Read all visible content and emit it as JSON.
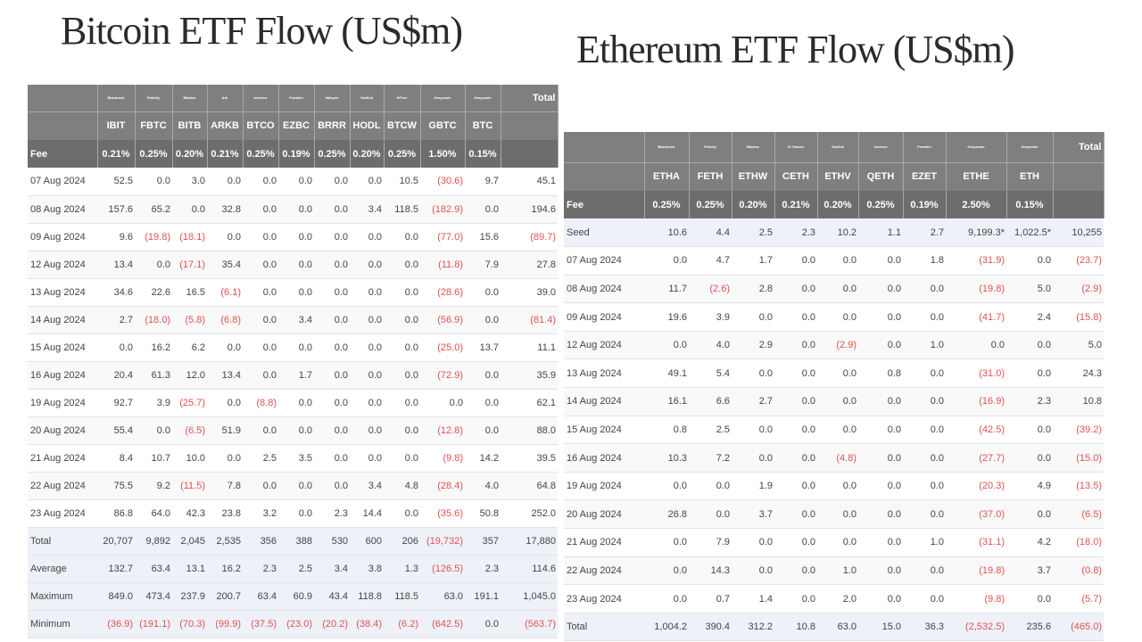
{
  "btc": {
    "title": "Bitcoin ETF Flow (US$m)",
    "issuers": [
      "Blackrock",
      "Fidelity",
      "Bitwise",
      "Ark",
      "Invesco",
      "Franklin",
      "Valkyrie",
      "VanEck",
      "WTree",
      "Grayscale",
      "Grayscale"
    ],
    "total_label": "Total",
    "tickers": [
      "IBIT",
      "FBTC",
      "BITB",
      "ARKB",
      "BTCO",
      "EZBC",
      "BRRR",
      "HODL",
      "BTCW",
      "GBTC",
      "BTC"
    ],
    "fee_label": "Fee",
    "fees": [
      "0.21%",
      "0.25%",
      "0.20%",
      "0.21%",
      "0.25%",
      "0.19%",
      "0.25%",
      "0.20%",
      "0.25%",
      "1.50%",
      "0.15%"
    ],
    "rows": [
      {
        "label": "07 Aug 2024",
        "values": [
          "52.5",
          "0.0",
          "3.0",
          "0.0",
          "0.0",
          "0.0",
          "0.0",
          "0.0",
          "10.5",
          "(30.6)",
          "9.7",
          "45.1"
        ]
      },
      {
        "label": "08 Aug 2024",
        "values": [
          "157.6",
          "65.2",
          "0.0",
          "32.8",
          "0.0",
          "0.0",
          "0.0",
          "3.4",
          "118.5",
          "(182.9)",
          "0.0",
          "194.6"
        ]
      },
      {
        "label": "09 Aug 2024",
        "values": [
          "9.6",
          "(19.8)",
          "(18.1)",
          "0.0",
          "0.0",
          "0.0",
          "0.0",
          "0.0",
          "0.0",
          "(77.0)",
          "15.6",
          "(89.7)"
        ]
      },
      {
        "label": "12 Aug 2024",
        "values": [
          "13.4",
          "0.0",
          "(17.1)",
          "35.4",
          "0.0",
          "0.0",
          "0.0",
          "0.0",
          "0.0",
          "(11.8)",
          "7.9",
          "27.8"
        ]
      },
      {
        "label": "13 Aug 2024",
        "values": [
          "34.6",
          "22.6",
          "16.5",
          "(6.1)",
          "0.0",
          "0.0",
          "0.0",
          "0.0",
          "0.0",
          "(28.6)",
          "0.0",
          "39.0"
        ]
      },
      {
        "label": "14 Aug 2024",
        "values": [
          "2.7",
          "(18.0)",
          "(5.8)",
          "(6.8)",
          "0.0",
          "3.4",
          "0.0",
          "0.0",
          "0.0",
          "(56.9)",
          "0.0",
          "(81.4)"
        ]
      },
      {
        "label": "15 Aug 2024",
        "values": [
          "0.0",
          "16.2",
          "6.2",
          "0.0",
          "0.0",
          "0.0",
          "0.0",
          "0.0",
          "0.0",
          "(25.0)",
          "13.7",
          "11.1"
        ]
      },
      {
        "label": "16 Aug 2024",
        "values": [
          "20.4",
          "61.3",
          "12.0",
          "13.4",
          "0.0",
          "1.7",
          "0.0",
          "0.0",
          "0.0",
          "(72.9)",
          "0.0",
          "35.9"
        ]
      },
      {
        "label": "19 Aug 2024",
        "values": [
          "92.7",
          "3.9",
          "(25.7)",
          "0.0",
          "(8.8)",
          "0.0",
          "0.0",
          "0.0",
          "0.0",
          "0.0",
          "0.0",
          "62.1"
        ]
      },
      {
        "label": "20 Aug 2024",
        "values": [
          "55.4",
          "0.0",
          "(6.5)",
          "51.9",
          "0.0",
          "0.0",
          "0.0",
          "0.0",
          "0.0",
          "(12.8)",
          "0.0",
          "88.0"
        ]
      },
      {
        "label": "21 Aug 2024",
        "values": [
          "8.4",
          "10.7",
          "10.0",
          "0.0",
          "2.5",
          "3.5",
          "0.0",
          "0.0",
          "0.0",
          "(9.8)",
          "14.2",
          "39.5"
        ]
      },
      {
        "label": "22 Aug 2024",
        "values": [
          "75.5",
          "9.2",
          "(11.5)",
          "7.8",
          "0.0",
          "0.0",
          "0.0",
          "3.4",
          "4.8",
          "(28.4)",
          "4.0",
          "64.8"
        ]
      },
      {
        "label": "23 Aug 2024",
        "values": [
          "86.8",
          "64.0",
          "42.3",
          "23.8",
          "3.2",
          "0.0",
          "2.3",
          "14.4",
          "0.0",
          "(35.6)",
          "50.8",
          "252.0"
        ]
      }
    ],
    "summary": [
      {
        "label": "Total",
        "values": [
          "20,707",
          "9,892",
          "2,045",
          "2,535",
          "356",
          "388",
          "530",
          "600",
          "206",
          "(19,732)",
          "357",
          "17,880"
        ]
      },
      {
        "label": "Average",
        "values": [
          "132.7",
          "63.4",
          "13.1",
          "16.2",
          "2.3",
          "2.5",
          "3.4",
          "3.8",
          "1.3",
          "(126.5)",
          "2.3",
          "114.6"
        ]
      },
      {
        "label": "Maximum",
        "values": [
          "849.0",
          "473.4",
          "237.9",
          "200.7",
          "63.4",
          "60.9",
          "43.4",
          "118.8",
          "118.5",
          "63.0",
          "191.1",
          "1,045.0"
        ]
      },
      {
        "label": "Minimum",
        "values": [
          "(36.9)",
          "(191.1)",
          "(70.3)",
          "(99.9)",
          "(37.5)",
          "(23.0)",
          "(20.2)",
          "(38.4)",
          "(6.2)",
          "(642.5)",
          "0.0",
          "(563.7)"
        ]
      }
    ]
  },
  "eth": {
    "title": "Ethereum ETF Flow (US$m)",
    "issuers": [
      "Blackrock",
      "Fidelity",
      "Bitwise",
      "21 Shares",
      "VanEck",
      "Invesco",
      "Franklin",
      "Grayscale",
      "Grayscale"
    ],
    "total_label": "Total",
    "tickers": [
      "ETHA",
      "FETH",
      "ETHW",
      "CETH",
      "ETHV",
      "QETH",
      "EZET",
      "ETHE",
      "ETH"
    ],
    "fee_label": "Fee",
    "fees": [
      "0.25%",
      "0.25%",
      "0.20%",
      "0.21%",
      "0.20%",
      "0.25%",
      "0.19%",
      "2.50%",
      "0.15%"
    ],
    "seed": {
      "label": "Seed",
      "values": [
        "10.6",
        "4.4",
        "2.5",
        "2.3",
        "10.2",
        "1.1",
        "2.7",
        "9,199.3*",
        "1,022.5*",
        "10,255"
      ]
    },
    "rows": [
      {
        "label": "07 Aug 2024",
        "values": [
          "0.0",
          "4.7",
          "1.7",
          "0.0",
          "0.0",
          "0.0",
          "1.8",
          "(31.9)",
          "0.0",
          "(23.7)"
        ]
      },
      {
        "label": "08 Aug 2024",
        "values": [
          "11.7",
          "(2.6)",
          "2.8",
          "0.0",
          "0.0",
          "0.0",
          "0.0",
          "(19.8)",
          "5.0",
          "(2.9)"
        ]
      },
      {
        "label": "09 Aug 2024",
        "values": [
          "19.6",
          "3.9",
          "0.0",
          "0.0",
          "0.0",
          "0.0",
          "0.0",
          "(41.7)",
          "2.4",
          "(15.8)"
        ]
      },
      {
        "label": "12 Aug 2024",
        "values": [
          "0.0",
          "4.0",
          "2.9",
          "0.0",
          "(2.9)",
          "0.0",
          "1.0",
          "0.0",
          "0.0",
          "5.0"
        ]
      },
      {
        "label": "13 Aug 2024",
        "values": [
          "49.1",
          "5.4",
          "0.0",
          "0.0",
          "0.0",
          "0.8",
          "0.0",
          "(31.0)",
          "0.0",
          "24.3"
        ]
      },
      {
        "label": "14 Aug 2024",
        "values": [
          "16.1",
          "6.6",
          "2.7",
          "0.0",
          "0.0",
          "0.0",
          "0.0",
          "(16.9)",
          "2.3",
          "10.8"
        ]
      },
      {
        "label": "15 Aug 2024",
        "values": [
          "0.8",
          "2.5",
          "0.0",
          "0.0",
          "0.0",
          "0.0",
          "0.0",
          "(42.5)",
          "0.0",
          "(39.2)"
        ]
      },
      {
        "label": "16 Aug 2024",
        "values": [
          "10.3",
          "7.2",
          "0.0",
          "0.0",
          "(4.8)",
          "0.0",
          "0.0",
          "(27.7)",
          "0.0",
          "(15.0)"
        ]
      },
      {
        "label": "19 Aug 2024",
        "values": [
          "0.0",
          "0.0",
          "1.9",
          "0.0",
          "0.0",
          "0.0",
          "0.0",
          "(20.3)",
          "4.9",
          "(13.5)"
        ]
      },
      {
        "label": "20 Aug 2024",
        "values": [
          "26.8",
          "0.0",
          "3.7",
          "0.0",
          "0.0",
          "0.0",
          "0.0",
          "(37.0)",
          "0.0",
          "(6.5)"
        ]
      },
      {
        "label": "21 Aug 2024",
        "values": [
          "0.0",
          "7.9",
          "0.0",
          "0.0",
          "0.0",
          "0.0",
          "1.0",
          "(31.1)",
          "4.2",
          "(18.0)"
        ]
      },
      {
        "label": "22 Aug 2024",
        "values": [
          "0.0",
          "14.3",
          "0.0",
          "0.0",
          "1.0",
          "0.0",
          "0.0",
          "(19.8)",
          "3.7",
          "(0.8)"
        ]
      },
      {
        "label": "23 Aug 2024",
        "values": [
          "0.0",
          "0.7",
          "1.4",
          "0.0",
          "2.0",
          "0.0",
          "0.0",
          "(9.8)",
          "0.0",
          "(5.7)"
        ]
      }
    ],
    "summary": [
      {
        "label": "Total",
        "values": [
          "1,004.2",
          "390.4",
          "312.2",
          "10.8",
          "63.0",
          "15.0",
          "36.3",
          "(2,532.5)",
          "235.6",
          "(465.0)"
        ]
      }
    ]
  }
}
